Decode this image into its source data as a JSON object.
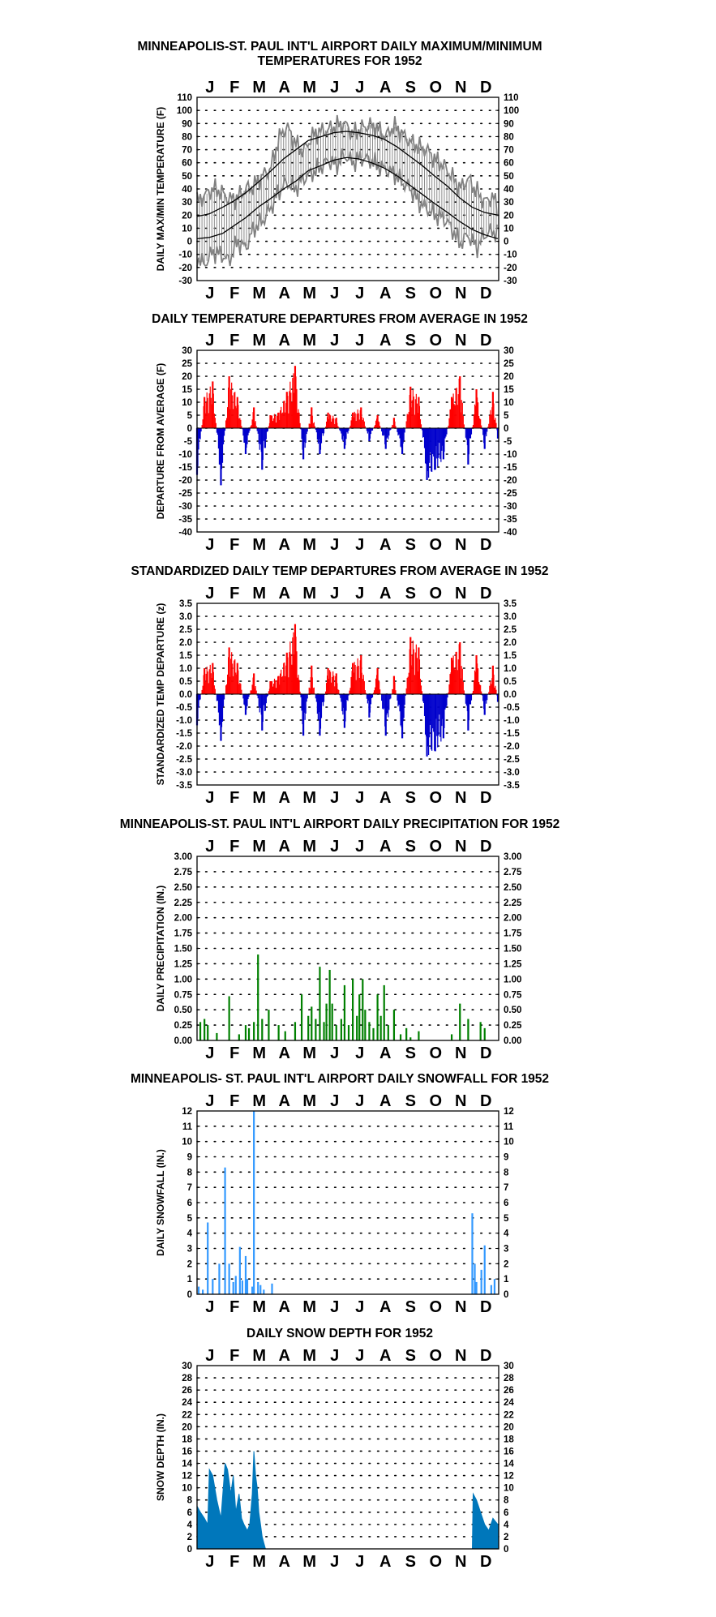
{
  "months": [
    "J",
    "F",
    "M",
    "A",
    "M",
    "J",
    "J",
    "A",
    "S",
    "O",
    "N",
    "D"
  ],
  "chart_data": [
    {
      "id": "temps",
      "type": "line",
      "title": "MINNEAPOLIS-ST. PAUL INT'L AIRPORT DAILY MAXIMUM/MINIMUM\nTEMPERATURES FOR 1952",
      "ylabel": "DAILY MAX/MIN TEMPERATURE (F)",
      "ylim": [
        -30,
        110
      ],
      "yticks": [
        -30,
        -20,
        -10,
        0,
        10,
        20,
        30,
        40,
        50,
        60,
        70,
        80,
        90,
        100,
        110
      ],
      "tick_decimals": 0,
      "grid": true,
      "normal_high": {
        "x": [
          1,
          16,
          32,
          46,
          60,
          75,
          91,
          106,
          121,
          136,
          152,
          167,
          182,
          197,
          213,
          228,
          244,
          259,
          274,
          289,
          305,
          320,
          335,
          350,
          366
        ],
        "y": [
          19,
          21,
          26,
          31,
          37,
          45,
          54,
          63,
          70,
          77,
          80,
          83,
          84,
          83,
          81,
          78,
          72,
          65,
          58,
          50,
          42,
          33,
          26,
          22,
          20
        ]
      },
      "normal_low": {
        "x": [
          1,
          16,
          32,
          46,
          60,
          75,
          91,
          106,
          121,
          136,
          152,
          167,
          182,
          197,
          213,
          228,
          244,
          259,
          274,
          289,
          305,
          320,
          335,
          350,
          366
        ],
        "y": [
          2,
          3,
          6,
          12,
          18,
          26,
          33,
          40,
          46,
          54,
          58,
          62,
          64,
          63,
          60,
          56,
          50,
          43,
          36,
          29,
          22,
          15,
          9,
          5,
          2
        ]
      },
      "daily_envelope": {
        "x": [
          1,
          10,
          20,
          30,
          40,
          50,
          60,
          70,
          80,
          90,
          100,
          110,
          120,
          130,
          140,
          150,
          160,
          170,
          180,
          190,
          200,
          210,
          220,
          230,
          240,
          250,
          260,
          270,
          280,
          290,
          300,
          310,
          320,
          330,
          340,
          350,
          360,
          366
        ],
        "high": [
          30,
          35,
          40,
          38,
          32,
          33,
          40,
          42,
          50,
          55,
          78,
          88,
          75,
          68,
          80,
          84,
          85,
          88,
          90,
          82,
          86,
          89,
          86,
          80,
          88,
          82,
          76,
          72,
          70,
          62,
          58,
          50,
          40,
          48,
          38,
          30,
          34,
          25
        ],
        "low": [
          -12,
          -18,
          -8,
          -10,
          -15,
          0,
          -5,
          10,
          15,
          25,
          38,
          45,
          40,
          48,
          52,
          56,
          62,
          58,
          66,
          60,
          64,
          62,
          58,
          55,
          52,
          45,
          40,
          30,
          25,
          20,
          18,
          10,
          -2,
          5,
          -5,
          5,
          8,
          5
        ]
      }
    },
    {
      "id": "dep",
      "type": "bar",
      "title": "DAILY TEMPERATURE DEPARTURES FROM AVERAGE IN 1952",
      "ylabel": "DEPARTURE FROM AVERAGE (F)",
      "ylim": [
        -40,
        30
      ],
      "yticks": [
        -40,
        -35,
        -30,
        -25,
        -20,
        -15,
        -10,
        -5,
        0,
        5,
        10,
        15,
        20,
        25,
        30
      ],
      "tick_decimals": 0,
      "grid": true,
      "pos_color": "#ff0000",
      "neg_color": "#0000cc",
      "x": [
        1,
        10,
        20,
        30,
        40,
        50,
        60,
        70,
        80,
        90,
        100,
        110,
        120,
        130,
        140,
        150,
        160,
        170,
        180,
        190,
        200,
        210,
        220,
        230,
        240,
        250,
        260,
        270,
        280,
        290,
        300,
        310,
        320,
        330,
        340,
        350,
        360,
        366
      ],
      "y": [
        -18,
        12,
        18,
        -22,
        20,
        12,
        -10,
        8,
        -16,
        5,
        6,
        14,
        24,
        -12,
        8,
        -10,
        6,
        4,
        -8,
        6,
        8,
        -5,
        5,
        -8,
        4,
        -10,
        16,
        12,
        -20,
        -16,
        -12,
        12,
        20,
        -14,
        15,
        -8,
        14,
        -4
      ]
    },
    {
      "id": "zdep",
      "type": "bar",
      "title": "STANDARDIZED DAILY TEMP DEPARTURES FROM AVERAGE IN 1952",
      "ylabel": "STANDARDIZED TEMP DEPARTURE (z)",
      "ylim": [
        -3.5,
        3.5
      ],
      "yticks": [
        -3.5,
        -3,
        -2.5,
        -2,
        -1.5,
        -1,
        -0.5,
        0,
        0.5,
        1,
        1.5,
        2,
        2.5,
        3,
        3.5
      ],
      "tick_decimals": 1,
      "grid": true,
      "pos_color": "#ff0000",
      "neg_color": "#0000cc",
      "x": [
        1,
        10,
        20,
        30,
        40,
        50,
        60,
        70,
        80,
        90,
        100,
        110,
        120,
        130,
        140,
        150,
        160,
        170,
        180,
        190,
        200,
        210,
        220,
        230,
        240,
        250,
        260,
        270,
        280,
        290,
        300,
        310,
        320,
        330,
        340,
        350,
        360,
        366
      ],
      "y": [
        -1.2,
        1.0,
        1.2,
        -1.8,
        1.8,
        1.2,
        -0.8,
        0.8,
        -1.4,
        0.5,
        0.7,
        1.6,
        2.7,
        -1.6,
        1.1,
        -1.6,
        1.0,
        0.8,
        -1.3,
        1.2,
        1.5,
        -0.9,
        1.0,
        -1.6,
        0.7,
        -1.7,
        2.2,
        1.8,
        -2.4,
        -2.2,
        -1.7,
        1.4,
        2.0,
        -1.4,
        1.5,
        -0.8,
        1.1,
        -0.3
      ]
    },
    {
      "id": "precip",
      "type": "bar",
      "title": "MINNEAPOLIS-ST. PAUL INT'L AIRPORT DAILY PRECIPITATION FOR 1952",
      "ylabel": "DAILY PRECIPITATION (IN.)",
      "ylim": [
        0,
        3
      ],
      "yticks": [
        0,
        0.25,
        0.5,
        0.75,
        1,
        1.25,
        1.5,
        1.75,
        2,
        2.25,
        2.5,
        2.75,
        3
      ],
      "tick_decimals": 2,
      "grid": true,
      "color": "#008000",
      "x": [
        5,
        10,
        14,
        25,
        40,
        52,
        60,
        64,
        70,
        75,
        80,
        88,
        100,
        108,
        120,
        128,
        136,
        140,
        145,
        150,
        155,
        158,
        162,
        165,
        170,
        176,
        180,
        185,
        190,
        195,
        198,
        202,
        205,
        210,
        215,
        220,
        224,
        228,
        233,
        240,
        248,
        255,
        260,
        270,
        310,
        320,
        330,
        345,
        350
      ],
      "y": [
        0.3,
        0.35,
        0.25,
        0.12,
        0.72,
        0.1,
        0.25,
        0.2,
        0.3,
        1.4,
        0.35,
        0.5,
        0.25,
        0.15,
        0.3,
        0.75,
        0.4,
        0.55,
        0.35,
        1.2,
        0.3,
        0.6,
        1.15,
        0.6,
        0.25,
        0.35,
        0.9,
        0.25,
        1.0,
        0.4,
        0.75,
        1.0,
        0.5,
        0.3,
        0.2,
        0.75,
        0.4,
        0.9,
        0.25,
        0.5,
        0.1,
        0.2,
        0.05,
        0.15,
        0.1,
        0.6,
        0.35,
        0.3,
        0.2
      ]
    },
    {
      "id": "snow",
      "type": "bar",
      "title": "MINNEAPOLIS- ST. PAUL INT'L AIRPORT DAILY SNOWFALL FOR 1952",
      "ylabel": "DAILY SNOWFALL (IN.)",
      "ylim": [
        0,
        12
      ],
      "yticks": [
        0,
        1,
        2,
        3,
        4,
        5,
        6,
        7,
        8,
        9,
        10,
        11,
        12
      ],
      "tick_decimals": 0,
      "grid": true,
      "color": "#3399ff",
      "x": [
        3,
        8,
        14,
        20,
        28,
        35,
        40,
        45,
        48,
        53,
        56,
        60,
        62,
        68,
        70,
        75,
        78,
        82,
        92,
        335,
        338,
        340,
        346,
        350,
        358,
        362
      ],
      "y": [
        0.5,
        0.3,
        4.7,
        1.0,
        2.0,
        8.3,
        2.0,
        0.8,
        1.2,
        3.1,
        0.9,
        2.5,
        1.0,
        0.5,
        12,
        0.8,
        0.6,
        0.3,
        0.7,
        5.3,
        2.0,
        0.8,
        1.6,
        3.2,
        0.6,
        1.0
      ]
    },
    {
      "id": "depth",
      "type": "area",
      "title": "DAILY SNOW DEPTH FOR 1952",
      "ylabel": "SNOW DEPTH (IN.)",
      "ylim": [
        0,
        30
      ],
      "yticks": [
        0,
        2,
        4,
        6,
        8,
        10,
        12,
        14,
        16,
        18,
        20,
        22,
        24,
        26,
        28,
        30
      ],
      "tick_decimals": 0,
      "grid": true,
      "color": "#0077bb",
      "x": [
        1,
        5,
        10,
        14,
        16,
        20,
        25,
        30,
        35,
        38,
        42,
        45,
        48,
        52,
        55,
        58,
        62,
        65,
        68,
        70,
        72,
        74,
        76,
        78,
        80,
        82,
        84,
        335,
        336,
        340,
        345,
        350,
        355,
        360,
        366
      ],
      "y": [
        7,
        6,
        5,
        4,
        13,
        12,
        8,
        5,
        14,
        13,
        9,
        12,
        6,
        9,
        5,
        4,
        3,
        4,
        9,
        16,
        12,
        10,
        6,
        4,
        2,
        1,
        0,
        0,
        9,
        8,
        6,
        4,
        3,
        5,
        4
      ]
    }
  ]
}
